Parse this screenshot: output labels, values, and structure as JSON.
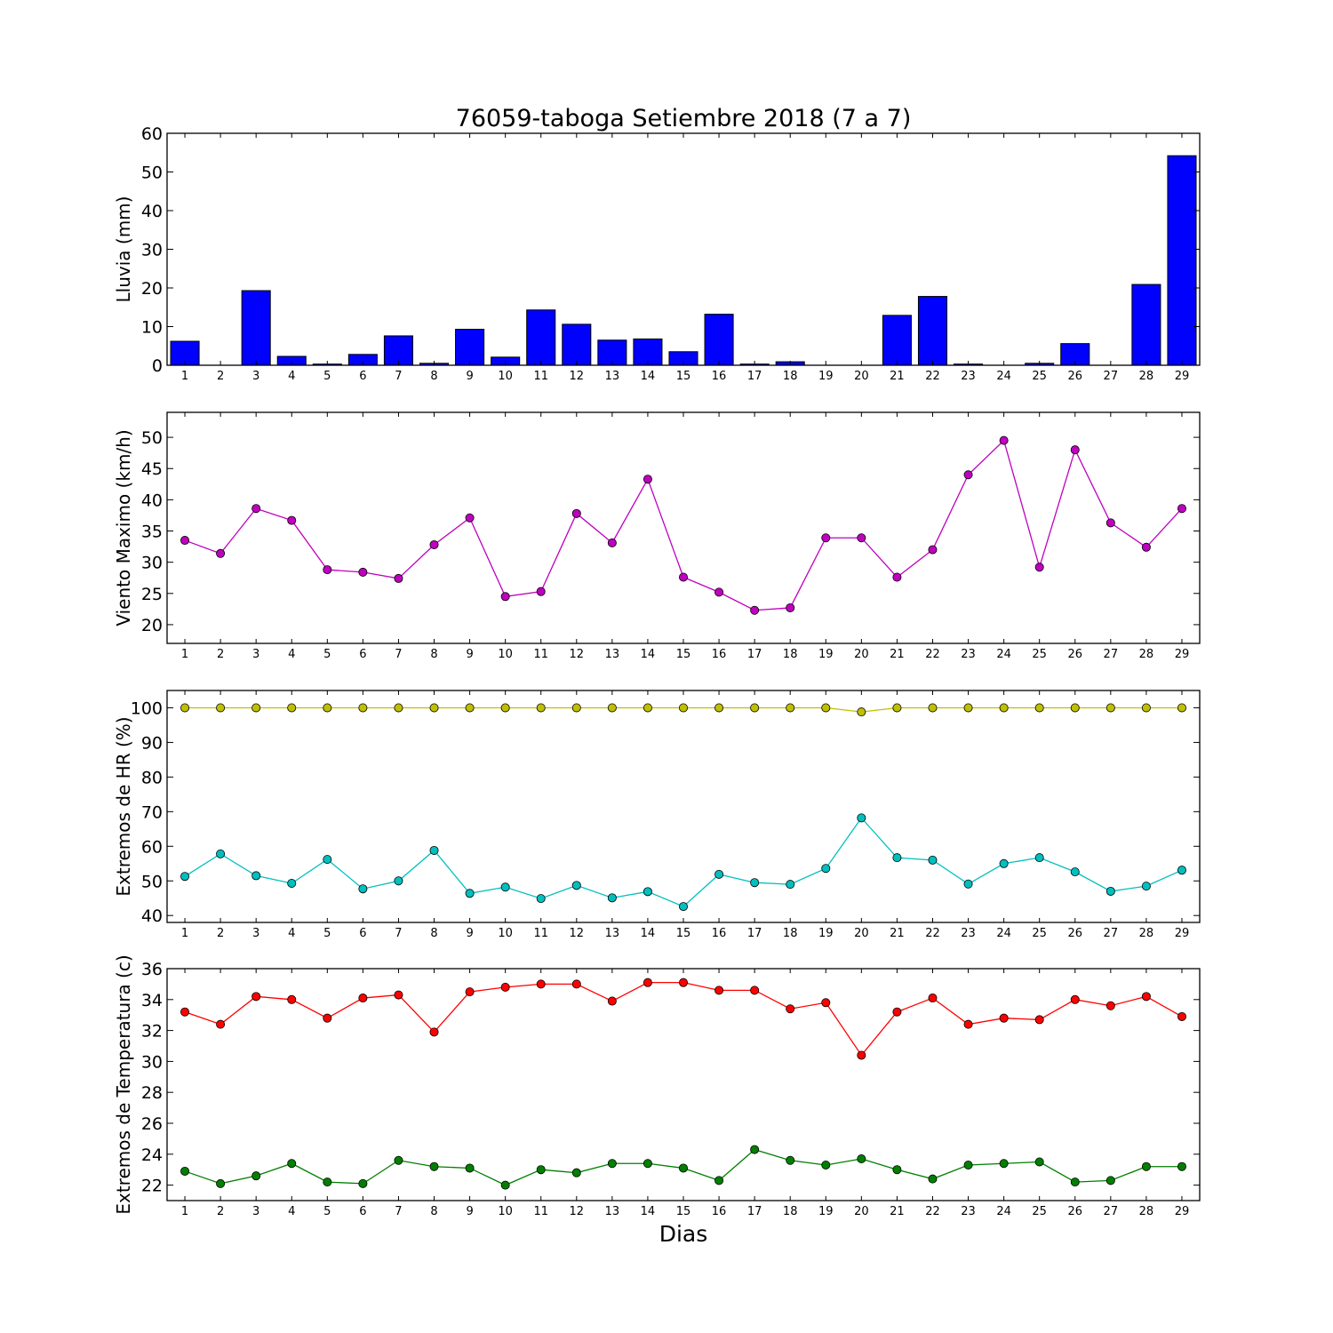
{
  "figure": {
    "title": "76059-taboga Setiembre 2018  (7 a 7)",
    "xlabel": "Dias"
  },
  "chart_data": [
    {
      "type": "bar",
      "ylabel": "Lluvia (mm)",
      "ylim": [
        0,
        60
      ],
      "yticks": [
        0,
        10,
        20,
        30,
        40,
        50,
        60
      ],
      "xlim": [
        0.5,
        29.5
      ],
      "categories": [
        1,
        2,
        3,
        4,
        5,
        6,
        7,
        8,
        9,
        10,
        11,
        12,
        13,
        14,
        15,
        16,
        17,
        18,
        19,
        20,
        21,
        22,
        23,
        24,
        25,
        26,
        27,
        28,
        29
      ],
      "series": [
        {
          "color": "#0000ff",
          "values": [
            6.2,
            0,
            19.3,
            2.3,
            0.3,
            2.8,
            7.6,
            0.5,
            9.3,
            2.1,
            14.3,
            10.6,
            6.5,
            6.8,
            3.5,
            13.2,
            0.3,
            0.9,
            0,
            0,
            12.9,
            17.8,
            0.3,
            0,
            0.5,
            5.6,
            0,
            20.9,
            54.2
          ]
        }
      ]
    },
    {
      "type": "line",
      "ylabel": "Viento Maximo (km/h)",
      "ylim": [
        17,
        54
      ],
      "yticks": [
        20,
        25,
        30,
        35,
        40,
        45,
        50
      ],
      "xlim": [
        0.5,
        29.5
      ],
      "x": [
        1,
        2,
        3,
        4,
        5,
        6,
        7,
        8,
        9,
        10,
        11,
        12,
        13,
        14,
        15,
        16,
        17,
        18,
        19,
        20,
        21,
        22,
        23,
        24,
        25,
        26,
        27,
        28,
        29
      ],
      "series": [
        {
          "color": "#bf00bf",
          "values": [
            33.5,
            31.4,
            38.6,
            36.7,
            28.8,
            28.4,
            27.4,
            32.8,
            37.1,
            24.5,
            25.3,
            37.8,
            33.1,
            43.3,
            27.6,
            25.2,
            22.3,
            22.7,
            33.9,
            33.9,
            27.6,
            32.0,
            44.0,
            49.5,
            29.2,
            48.0,
            36.3,
            32.4,
            38.6
          ]
        }
      ]
    },
    {
      "type": "line",
      "ylabel": "Extremos de HR (%)",
      "ylim": [
        38,
        105
      ],
      "yticks": [
        40,
        50,
        60,
        70,
        80,
        90,
        100
      ],
      "xlim": [
        0.5,
        29.5
      ],
      "x": [
        1,
        2,
        3,
        4,
        5,
        6,
        7,
        8,
        9,
        10,
        11,
        12,
        13,
        14,
        15,
        16,
        17,
        18,
        19,
        20,
        21,
        22,
        23,
        24,
        25,
        26,
        27,
        28,
        29
      ],
      "series": [
        {
          "color": "#bfbf00",
          "values": [
            100,
            100,
            100,
            100,
            100,
            100,
            100,
            100,
            100,
            100,
            100,
            100,
            100,
            100,
            100,
            100,
            100,
            100,
            100,
            98.8,
            100,
            100,
            100,
            100,
            100,
            100,
            100,
            100,
            100
          ]
        },
        {
          "color": "#00bfbf",
          "values": [
            51.3,
            57.8,
            51.5,
            49.3,
            56.2,
            47.7,
            50.0,
            58.8,
            46.4,
            48.2,
            44.9,
            48.7,
            45.1,
            46.9,
            42.6,
            51.9,
            49.5,
            49.0,
            53.6,
            68.2,
            56.7,
            56.0,
            49.1,
            55.0,
            56.7,
            52.6,
            47.0,
            48.5,
            53.1
          ]
        }
      ]
    },
    {
      "type": "line",
      "ylabel": "Extremos de Temperatura (c)",
      "ylim": [
        21,
        36
      ],
      "yticks": [
        22,
        24,
        26,
        28,
        30,
        32,
        34,
        36
      ],
      "xlim": [
        0.5,
        29.5
      ],
      "x": [
        1,
        2,
        3,
        4,
        5,
        6,
        7,
        8,
        9,
        10,
        11,
        12,
        13,
        14,
        15,
        16,
        17,
        18,
        19,
        20,
        21,
        22,
        23,
        24,
        25,
        26,
        27,
        28,
        29
      ],
      "series": [
        {
          "color": "#ff0000",
          "values": [
            33.2,
            32.4,
            34.2,
            34.0,
            32.8,
            34.1,
            34.3,
            31.9,
            34.5,
            34.8,
            35.0,
            35.0,
            33.9,
            35.1,
            35.1,
            34.6,
            34.6,
            33.4,
            33.8,
            30.4,
            33.2,
            34.1,
            32.4,
            32.8,
            32.7,
            34.0,
            33.6,
            34.2,
            32.9
          ]
        },
        {
          "color": "#007f00",
          "values": [
            22.9,
            22.1,
            22.6,
            23.4,
            22.2,
            22.1,
            23.6,
            23.2,
            23.1,
            22.0,
            23.0,
            22.8,
            23.4,
            23.4,
            23.1,
            22.3,
            24.3,
            23.6,
            23.3,
            23.7,
            23.0,
            22.4,
            23.3,
            23.4,
            23.5,
            22.2,
            22.3,
            23.2,
            23.2
          ]
        }
      ]
    }
  ]
}
